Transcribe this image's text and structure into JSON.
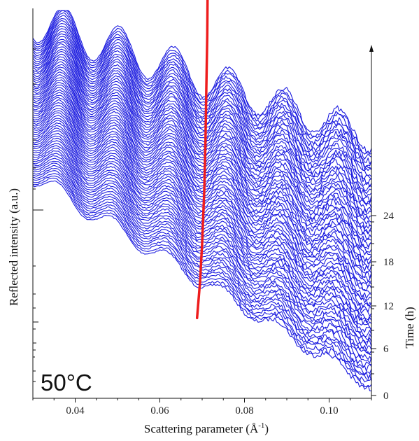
{
  "chart_data": {
    "type": "line",
    "title": "",
    "annotation": "50°C",
    "xlabel": "Scattering parameter (Å",
    "xlabel_sup": "-1",
    "xlabel_tail": ")",
    "ylabel": "Reflected intensity (a.u.)",
    "y2label": "Time (h)",
    "y_scale": "log",
    "xlim": [
      0.03,
      0.11
    ],
    "x_ticks": [
      "0.04",
      "0.06",
      "0.08",
      "0.10"
    ],
    "time_lim": [
      0,
      28
    ],
    "time_ticks": [
      "0",
      "6",
      "12",
      "18",
      "24"
    ],
    "series_color": "#1a1adf",
    "trace_color": "#ee1c1c",
    "curve_count": 70,
    "oscillation_peaks_x": [
      0.036,
      0.049,
      0.062,
      0.075,
      0.088,
      0.101
    ],
    "red_trace": {
      "name": "",
      "x": [
        0.0688,
        0.0695,
        0.07,
        0.0705,
        0.0708,
        0.071,
        0.0712,
        0.0713
      ],
      "time": [
        6.2,
        8.0,
        10.0,
        13.0,
        16.0,
        19.0,
        22.0,
        25.0
      ]
    }
  }
}
